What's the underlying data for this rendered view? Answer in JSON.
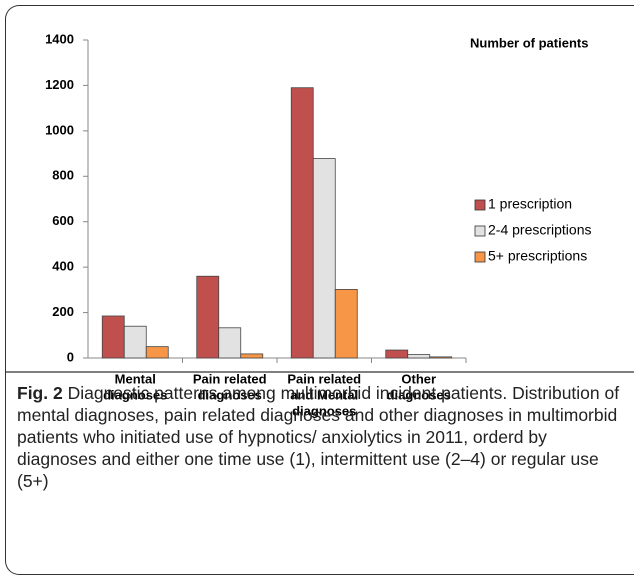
{
  "chart_data": {
    "type": "bar",
    "annotation": "Number of patients",
    "categories": [
      [
        "Mental",
        "diagnoses"
      ],
      [
        "Pain related",
        "diagnoses"
      ],
      [
        "Pain related",
        "and Mental",
        "diagnoses"
      ],
      [
        "Other",
        "diagnoses"
      ]
    ],
    "series": [
      {
        "name": "1 prescription",
        "color": "#c0504d",
        "values": [
          185,
          360,
          1190,
          35
        ]
      },
      {
        "name": "2-4 prescriptions",
        "color": "#e2e2e2",
        "values": [
          140,
          133,
          878,
          15
        ]
      },
      {
        "name": "5+ prescriptions",
        "color": "#f79646",
        "values": [
          50,
          18,
          302,
          5
        ]
      }
    ],
    "ylim": [
      0,
      1400
    ],
    "yticks": [
      0,
      200,
      400,
      600,
      800,
      1000,
      1200,
      1400
    ],
    "legend": "right"
  },
  "caption": {
    "label": "Fig. 2",
    "text": "Diagnostic patterns among multimorbid incident patients. Distribution of mental diagnoses, pain related diagnoses and other diagnoses in multimorbid patients who initiated use of hypnotics/ anxiolytics in 2011, orderd by diagnoses and either one time use (1), intermittent use (2–4) or regular use (5+)"
  }
}
